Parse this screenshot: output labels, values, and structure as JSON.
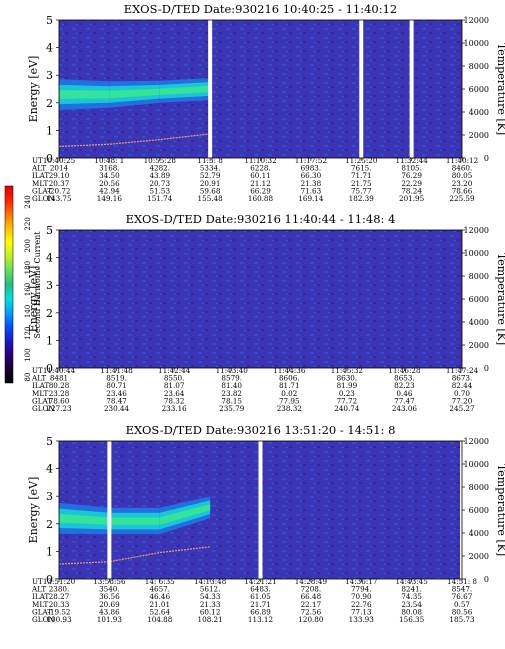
{
  "colorbar": {
    "label": "Second Harmonic Current",
    "ticks": [
      "240",
      "220",
      "200",
      "180",
      "160",
      "140",
      "120",
      "100",
      "80"
    ],
    "colors": [
      "#000000",
      "#1a0033",
      "#2a0080",
      "#1a1ad0",
      "#0050ff",
      "#00a0ff",
      "#00e0e0",
      "#20c080",
      "#60e060",
      "#c0f020",
      "#ffff00",
      "#ffc000",
      "#ff7000",
      "#ff2000",
      "#e00000"
    ]
  },
  "panels": [
    {
      "title": "EXOS-D/TED   Date:930216  10:40:25 - 11:40:12",
      "ylabel": "Energy [eV]",
      "y2label": "Temperature [K]",
      "yticks": [
        "5",
        "4",
        "3",
        "2",
        "1",
        "0"
      ],
      "y2ticks": [
        "12000",
        "10000",
        "8000",
        "6000",
        "4000",
        "2000",
        "0"
      ],
      "rowlabels": [
        "UT",
        "ALT",
        "ILAT",
        "MLT",
        "GLAT",
        "GLON"
      ],
      "columns": [
        [
          "10:40:25",
          "2014",
          "29.10",
          "20.37",
          "-20.72",
          "143.75"
        ],
        [
          "10:48: 1",
          "3168.",
          "34.50",
          "20.56",
          "42.94",
          "149.16"
        ],
        [
          "10:55:28",
          "4282.",
          "43.89",
          "20.73",
          "51.53",
          "151.74"
        ],
        [
          "11:3: 8",
          "5334.",
          "52.79",
          "20.91",
          "59.68",
          "155.48"
        ],
        [
          "11:10:32",
          "6228.",
          "60.11",
          "21.12",
          "66.29",
          "160.88"
        ],
        [
          "11:17:52",
          "6983.",
          "66.30",
          "21.38",
          "71.63",
          "169.14"
        ],
        [
          "11:25:20",
          "7615.",
          "71.71",
          "21.75",
          "75.77",
          "182.39"
        ],
        [
          "11:32:44",
          "8105.",
          "76.29",
          "22.29",
          "78.24",
          "201.95"
        ],
        [
          "11:40:12",
          "8460.",
          "80.05",
          "23.20",
          "78.66",
          "225.59"
        ]
      ]
    },
    {
      "title": "EXOS-D/TED   Date:930216  11:40:44 - 11:48: 4",
      "ylabel": "Energy [eV]",
      "y2label": "Temperature [K]",
      "yticks": [
        "5",
        "4",
        "3",
        "2",
        "1",
        "0"
      ],
      "y2ticks": [
        "12000",
        "10000",
        "8000",
        "6000",
        "4000",
        "2000",
        "0"
      ],
      "rowlabels": [
        "UT",
        "ALT",
        "ILAT",
        "MLT",
        "GLAT",
        "GLON"
      ],
      "columns": [
        [
          "11:40:44",
          "8481",
          "80.28",
          "23.28",
          "78.60",
          "227.23"
        ],
        [
          "11:41:48",
          "8519.",
          "80.71",
          "23.46",
          "78.47",
          "230.44"
        ],
        [
          "11:42:44",
          "8550.",
          "81.07",
          "23.64",
          "78.32",
          "233.16"
        ],
        [
          "11:43:40",
          "8579.",
          "81.40",
          "23.82",
          "78.15",
          "235.79"
        ],
        [
          "11:44:36",
          "8606.",
          "81.71",
          "0.02",
          "77.95",
          "238.32"
        ],
        [
          "11:45:32",
          "8630.",
          "81.99",
          "0.23",
          "77.72",
          "240.74"
        ],
        [
          "11:46:28",
          "8653.",
          "82.23",
          "0.46",
          "77.47",
          "243.06"
        ],
        [
          "11:47:24",
          "8673.",
          "82.44",
          "0.70",
          "77.20",
          "245.27"
        ]
      ]
    },
    {
      "title": "EXOS-D/TED   Date:930216  13:51:20 - 14:51: 8",
      "ylabel": "Energy [eV]",
      "y2label": "Temperature [K]",
      "yticks": [
        "5",
        "4",
        "3",
        "2",
        "1",
        "0"
      ],
      "y2ticks": [
        "12000",
        "10000",
        "8000",
        "6000",
        "4000",
        "2000",
        "0"
      ],
      "rowlabels": [
        "UT",
        "ALT",
        "ILAT",
        "MLT",
        "GLAT",
        "GLON"
      ],
      "columns": [
        [
          "13:51:20",
          "2380.",
          "28.27",
          "20.33",
          "-19.52",
          "100.93"
        ],
        [
          "13:58:56",
          "3540.",
          "36.56",
          "20.69",
          "43.86",
          "101.93"
        ],
        [
          "14: 6:35",
          "4657.",
          "46.46",
          "21.01",
          "52.64",
          "104.88"
        ],
        [
          "14:13:48",
          "5612.",
          "54.33",
          "21.33",
          "60.12",
          "108.21"
        ],
        [
          "14:21:21",
          "6483.",
          "61.05",
          "21.71",
          "66.89",
          "113.12"
        ],
        [
          "14:28:49",
          "7208.",
          "66.48",
          "22.17",
          "72.56",
          "120.80"
        ],
        [
          "14:36:17",
          "7794.",
          "70.90",
          "22.76",
          "77.13",
          "133.93"
        ],
        [
          "14:43:45",
          "8241.",
          "74.35",
          "23.54",
          "80.08",
          "156.35"
        ],
        [
          "14:51: 8",
          "8547.",
          "76.67",
          "0.57",
          "80.56",
          "185.73"
        ]
      ]
    }
  ],
  "chart_data": [
    {
      "type": "heatmap",
      "title": "EXOS-D/TED   Date:930216  10:40:25 - 11:40:12",
      "xlabel": "UT",
      "ylabel": "Energy [eV]",
      "y2label": "Temperature [K]",
      "ylim": [
        0,
        5
      ],
      "y2lim": [
        0,
        12000
      ],
      "colorbar_label": "Second Harmonic Current",
      "colorbar_range": [
        80,
        240
      ],
      "x_ticks": [
        "10:40:25",
        "10:48: 1",
        "10:55:28",
        "11:3: 8",
        "11:10:32",
        "11:17:52",
        "11:25:20",
        "11:32:44",
        "11:40:12"
      ],
      "band_energy_eV": [
        {
          "ut": "10:40:25",
          "center": 2.3,
          "half_width": 0.35
        },
        {
          "ut": "10:48: 1",
          "center": 2.3,
          "half_width": 0.3
        },
        {
          "ut": "10:55:28",
          "center": 2.4,
          "half_width": 0.25
        },
        {
          "ut": "11:3: 8",
          "center": 2.5,
          "half_width": 0.25
        }
      ],
      "temperature_K": [
        {
          "ut": "10:40:25",
          "value": 1000
        },
        {
          "ut": "10:48: 1",
          "value": 1200
        },
        {
          "ut": "10:55:28",
          "value": 1600
        },
        {
          "ut": "11:3: 8",
          "value": 2100
        }
      ],
      "data_gaps_ut": [
        "11:3: 8",
        "11:25:20",
        "11:32:44"
      ]
    },
    {
      "type": "heatmap",
      "title": "EXOS-D/TED   Date:930216  11:40:44 - 11:48: 4",
      "xlabel": "UT",
      "ylabel": "Energy [eV]",
      "y2label": "Temperature [K]",
      "ylim": [
        0,
        5
      ],
      "y2lim": [
        0,
        12000
      ],
      "colorbar_label": "Second Harmonic Current",
      "colorbar_range": [
        80,
        240
      ],
      "x_ticks": [
        "11:40:44",
        "11:41:48",
        "11:42:44",
        "11:43:40",
        "11:44:36",
        "11:45:32",
        "11:46:28",
        "11:47:24"
      ]
    },
    {
      "type": "heatmap",
      "title": "EXOS-D/TED   Date:930216  13:51:20 - 14:51: 8",
      "xlabel": "UT",
      "ylabel": "Energy [eV]",
      "y2label": "Temperature [K]",
      "ylim": [
        0,
        5
      ],
      "y2lim": [
        0,
        12000
      ],
      "colorbar_label": "Second Harmonic Current",
      "colorbar_range": [
        80,
        240
      ],
      "x_ticks": [
        "13:51:20",
        "13:58:56",
        "14: 6:35",
        "14:13:48",
        "14:21:21",
        "14:28:49",
        "14:36:17",
        "14:43:45",
        "14:51: 8"
      ],
      "band_energy_eV": [
        {
          "ut": "13:51:20",
          "center": 2.2,
          "half_width": 0.35
        },
        {
          "ut": "13:58:56",
          "center": 2.1,
          "half_width": 0.3
        },
        {
          "ut": "14: 6:35",
          "center": 2.1,
          "half_width": 0.3
        },
        {
          "ut": "14:13:48",
          "center": 2.6,
          "half_width": 0.25
        }
      ],
      "temperature_K": [
        {
          "ut": "13:51:20",
          "value": 1300
        },
        {
          "ut": "13:58:56",
          "value": 1500
        },
        {
          "ut": "14: 6:35",
          "value": 2300
        },
        {
          "ut": "14:13:48",
          "value": 2800
        }
      ],
      "data_gaps_ut": [
        "13:58:56",
        "14:21:21",
        "14:51: 8"
      ]
    }
  ]
}
